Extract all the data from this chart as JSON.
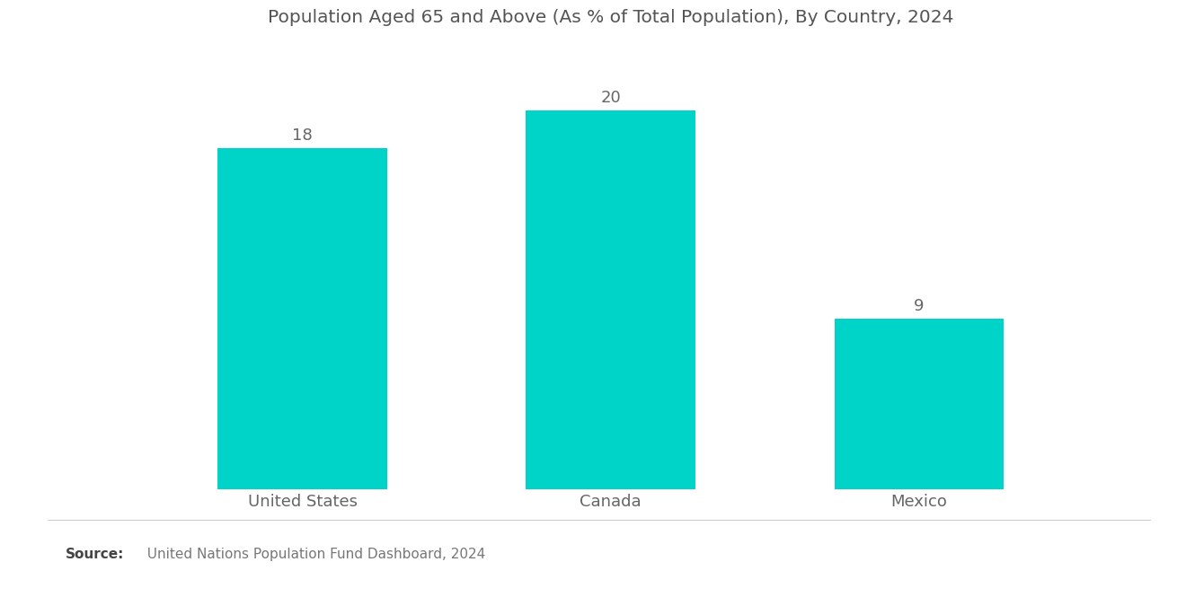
{
  "title": "Population Aged 65 and Above (As % of Total Population), By Country, 2024",
  "categories": [
    "United States",
    "Canada",
    "Mexico"
  ],
  "values": [
    18,
    20,
    9
  ],
  "bar_color": "#00D4C8",
  "value_color": "#666666",
  "label_color": "#666666",
  "title_color": "#555555",
  "background_color": "#ffffff",
  "source_bold": "Source:",
  "source_text": "  United Nations Population Fund Dashboard, 2024",
  "ylim": [
    0,
    23
  ],
  "bar_width": 0.55,
  "title_fontsize": 14.5,
  "label_fontsize": 13,
  "value_fontsize": 13,
  "source_fontsize": 11
}
